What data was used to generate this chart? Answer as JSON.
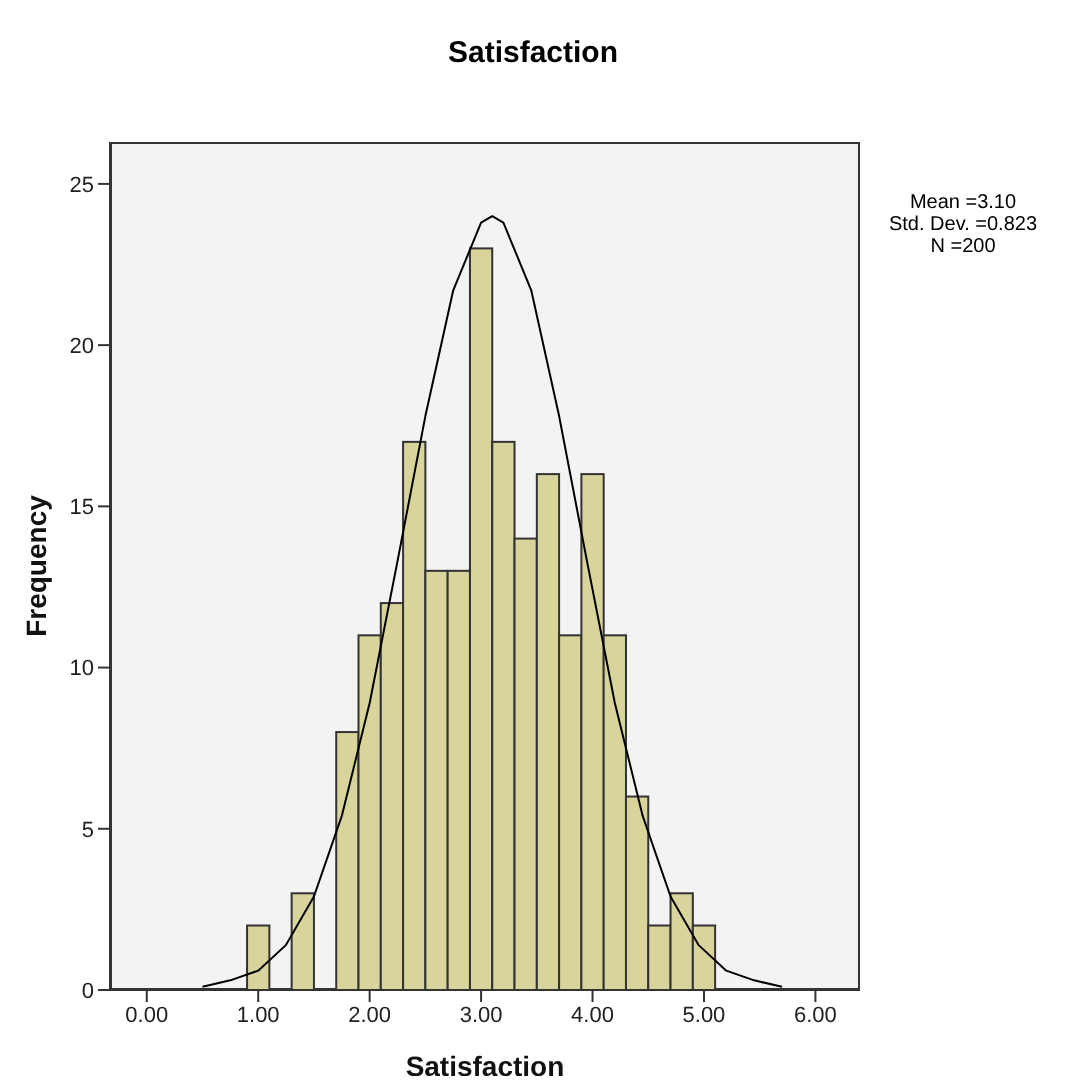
{
  "chart_data": {
    "type": "histogram",
    "title": "Satisfaction",
    "xlabel": "Satisfaction",
    "ylabel": "Frequency",
    "bins": [
      0.9,
      1.1,
      1.3,
      1.5,
      1.7,
      1.9,
      2.1,
      2.3,
      2.5,
      2.7,
      2.9,
      3.1,
      3.3,
      3.5,
      3.7,
      3.9,
      4.1,
      4.3,
      4.5,
      4.7,
      4.9,
      5.1
    ],
    "values": [
      2,
      0,
      3,
      0,
      8,
      11,
      12,
      17,
      13,
      13,
      23,
      17,
      14,
      16,
      11,
      16,
      11,
      6,
      2,
      3,
      2
    ],
    "color": "#d8d49c",
    "series": [
      {
        "type": "line",
        "color": "#000000",
        "x": [
          0.5,
          0.75,
          1.0,
          1.25,
          1.5,
          1.75,
          2.0,
          2.25,
          2.5,
          2.75,
          3.0,
          3.1,
          3.2,
          3.45,
          3.7,
          3.95,
          4.2,
          4.45,
          4.7,
          4.95,
          5.2,
          5.45,
          5.7
        ],
        "values": [
          0.1,
          0.3,
          0.6,
          1.4,
          2.9,
          5.4,
          8.9,
          13.3,
          17.8,
          21.7,
          23.8,
          24,
          23.8,
          21.7,
          17.8,
          13.3,
          8.9,
          5.4,
          2.9,
          1.4,
          0.6,
          0.3,
          0.1
        ]
      }
    ],
    "xlim": [
      -0.33,
      6.4
    ],
    "xticks": [
      {
        "value": 0,
        "label": "0.00"
      },
      {
        "value": 1,
        "label": "1.00"
      },
      {
        "value": 2,
        "label": "2.00"
      },
      {
        "value": 3,
        "label": "3.00"
      },
      {
        "value": 4,
        "label": "4.00"
      },
      {
        "value": 5,
        "label": "5.00"
      },
      {
        "value": 6,
        "label": "6.00"
      }
    ],
    "ylim": [
      0,
      26.3
    ],
    "yticks": [
      0,
      5,
      10,
      15,
      20,
      25
    ],
    "annotations": [
      "Mean =3.10",
      "Std. Dev. =0.823",
      "N =200"
    ]
  }
}
